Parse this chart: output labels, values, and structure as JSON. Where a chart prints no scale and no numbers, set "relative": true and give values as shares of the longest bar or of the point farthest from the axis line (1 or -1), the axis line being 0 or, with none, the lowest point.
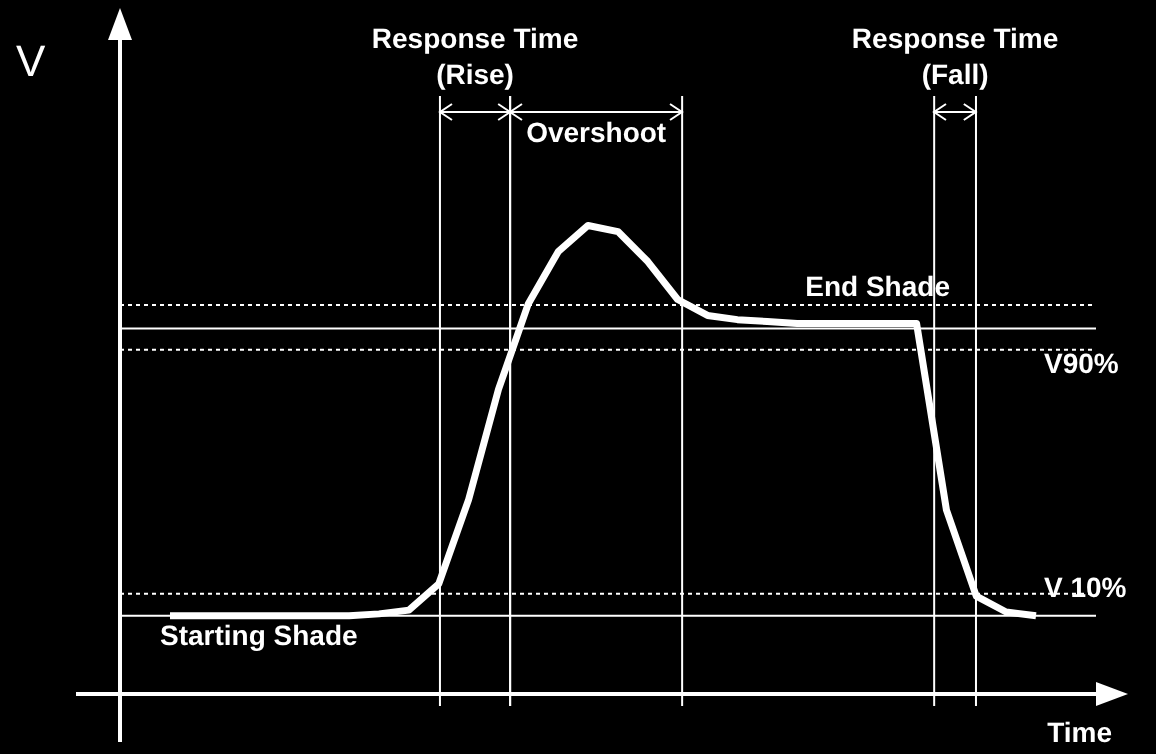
{
  "chart_data": {
    "type": "line",
    "relative": true,
    "xlabel": "Time",
    "ylabel": "V",
    "legend": false,
    "marker": "none",
    "categories": [
      null,
      null,
      null,
      null,
      null,
      null,
      null,
      null,
      null,
      null,
      null,
      null,
      null,
      null,
      null,
      null,
      null,
      null,
      null,
      null,
      null,
      null,
      null,
      null,
      null,
      null,
      null,
      null,
      null,
      null
    ],
    "series": [
      {
        "color": "#ffffff",
        "values": [
          0.167,
          0.167,
          0.167,
          0.167,
          0.167,
          0.167,
          0.167,
          0.171,
          0.179,
          0.235,
          0.415,
          0.65,
          0.833,
          0.944,
          1,
          0.987,
          0.923,
          0.842,
          0.808,
          0.799,
          0.795,
          0.791,
          0.791,
          0.791,
          0.791,
          0.791,
          0.393,
          0.209,
          0.175,
          0.167
        ]
      }
    ],
    "ref_lines": [
      {
        "axis": "y",
        "value": 0.83,
        "line_style": "dotted"
      },
      {
        "axis": "y",
        "value": 0.78,
        "label": "End Shade",
        "line_style": "solid"
      },
      {
        "axis": "y",
        "value": 0.735,
        "label": "V90%",
        "line_style": "dotted"
      },
      {
        "axis": "y",
        "value": 0.214,
        "label": "V 10%",
        "line_style": "dotted"
      },
      {
        "axis": "y",
        "value": 0.167,
        "label": "Starting Shade",
        "line_style": "solid"
      }
    ],
    "annotations": [
      "Response Time (Rise)",
      "Overshoot",
      "Response Time (Fall)"
    ]
  }
}
